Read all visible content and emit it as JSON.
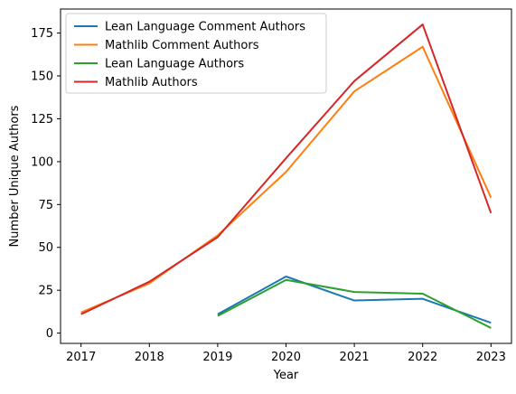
{
  "chart_data": {
    "type": "line",
    "xlabel": "Year",
    "ylabel": "Number Unique Authors",
    "x": [
      2017,
      2018,
      2019,
      2020,
      2021,
      2022,
      2023
    ],
    "xlim": [
      2016.7,
      2023.3
    ],
    "ylim": [
      -6,
      189
    ],
    "xticks": [
      "2017",
      "2018",
      "2019",
      "2020",
      "2021",
      "2022",
      "2023"
    ],
    "yticks": [
      "0",
      "25",
      "50",
      "75",
      "100",
      "125",
      "150",
      "175"
    ],
    "grid": false,
    "legend_position": "top-left",
    "series": [
      {
        "name": "Lean Language Comment Authors",
        "color": "#1f77b4",
        "values": [
          null,
          null,
          11,
          33,
          19,
          20,
          6
        ]
      },
      {
        "name": "Mathlib Comment Authors",
        "color": "#ff7f0e",
        "values": [
          12,
          29,
          57,
          94,
          141,
          167,
          79
        ]
      },
      {
        "name": "Lean Language Authors",
        "color": "#2ca02c",
        "values": [
          null,
          null,
          10,
          31,
          24,
          23,
          3
        ]
      },
      {
        "name": "Mathlib Authors",
        "color": "#d62728",
        "values": [
          11,
          30,
          56,
          102,
          147,
          180,
          70
        ]
      }
    ]
  }
}
